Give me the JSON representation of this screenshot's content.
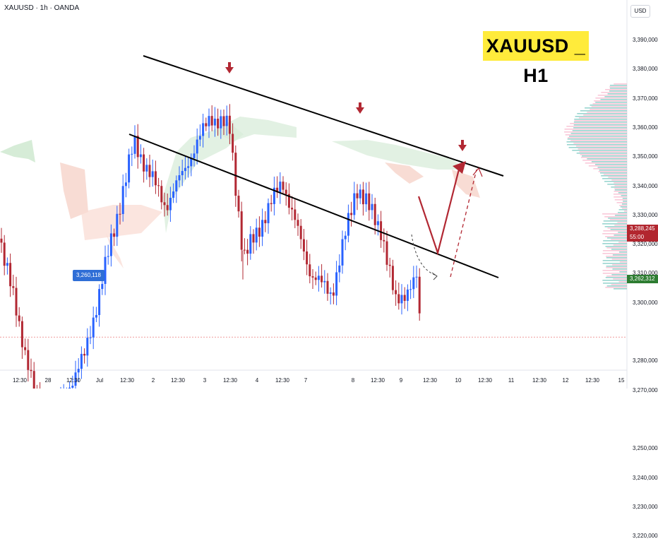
{
  "header": {
    "symbol_line": "XAUUSD · 1h · OANDA"
  },
  "title_badge": "XAUUSD _ H1",
  "currency": "USD",
  "price_scale": {
    "ticks": [
      "3,390,000",
      "3,380,000",
      "3,370,000",
      "3,360,000",
      "3,350,000",
      "3,340,000",
      "3,330,000",
      "3,320,000",
      "3,310,000",
      "3,300,000",
      "3,280,000",
      "3,270,000",
      "3,250,000",
      "3,240,000",
      "3,230,000",
      "3,220,000"
    ],
    "current_price": "3,288,245",
    "countdown": "55:00",
    "support_price": "3,262,312"
  },
  "low_marker": "3,260,118",
  "time_axis": [
    "12:30",
    "28",
    "12:30",
    "Jul",
    "12:30",
    "2",
    "12:30",
    "3",
    "12:30",
    "4",
    "12:30",
    "7",
    "8",
    "12:30",
    "9",
    "12:30",
    "10",
    "12:30",
    "11",
    "12:30",
    "12",
    "12:30",
    "15"
  ],
  "colors": {
    "up": "#2962ff",
    "down": "#b22833",
    "support": "#2e7d32",
    "arrow": "#b22833",
    "badge": "#ffeb3b"
  },
  "chart_data": {
    "type": "candlestick",
    "ylim": [
      3215,
      3397
    ],
    "support_level": 3262.312,
    "current_level": 3288.245,
    "key_points": [
      {
        "x": 0,
        "price": 3322
      },
      {
        "x": 50,
        "price": 3268
      },
      {
        "x": 78,
        "price": 3262
      },
      {
        "x": 120,
        "price": 3282
      },
      {
        "x": 190,
        "price": 3355
      },
      {
        "x": 235,
        "price": 3333
      },
      {
        "x": 298,
        "price": 3364
      },
      {
        "x": 325,
        "price": 3360
      },
      {
        "x": 345,
        "price": 3315
      },
      {
        "x": 400,
        "price": 3342
      },
      {
        "x": 440,
        "price": 3310
      },
      {
        "x": 470,
        "price": 3303
      },
      {
        "x": 505,
        "price": 3340
      },
      {
        "x": 540,
        "price": 3325
      },
      {
        "x": 560,
        "price": 3300
      },
      {
        "x": 590,
        "price": 3308
      },
      {
        "x": 596,
        "price": 3289
      }
    ]
  }
}
